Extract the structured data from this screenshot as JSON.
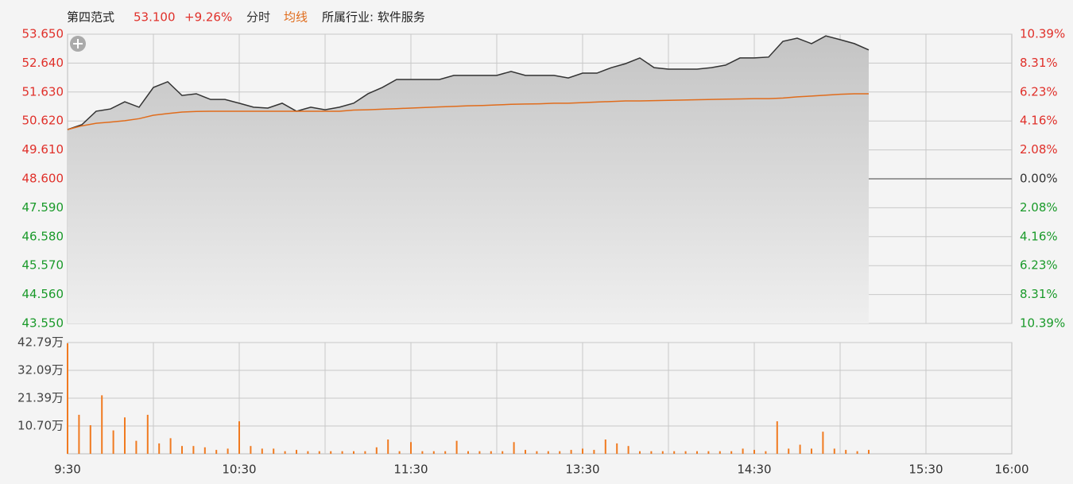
{
  "chart_data": [
    {
      "type": "line",
      "title": "第四范式",
      "price": "53.100",
      "change": "+9.26%",
      "subtitle": "所属行业: 软件服务",
      "x": [
        0,
        5,
        10,
        15,
        20,
        25,
        30,
        35,
        40,
        45,
        50,
        55,
        60,
        65,
        70,
        75,
        80,
        85,
        90,
        95,
        100,
        105,
        110,
        115,
        120,
        125,
        130,
        135,
        140,
        145,
        150,
        155,
        160,
        165,
        170,
        175,
        180,
        185,
        190,
        195,
        200,
        205,
        210,
        215,
        220,
        225,
        230,
        235,
        240,
        245,
        250,
        255,
        260,
        265,
        270,
        275,
        280
      ],
      "series": [
        {
          "name": "分时",
          "color": "#333333",
          "values": [
            50.32,
            50.49,
            50.96,
            51.04,
            51.29,
            51.1,
            51.79,
            51.99,
            51.51,
            51.57,
            51.37,
            51.37,
            51.24,
            51.1,
            51.07,
            51.24,
            50.96,
            51.1,
            51.01,
            51.1,
            51.24,
            51.57,
            51.79,
            52.07,
            52.07,
            52.07,
            52.07,
            52.21,
            52.21,
            52.21,
            52.21,
            52.35,
            52.21,
            52.21,
            52.21,
            52.12,
            52.29,
            52.29,
            52.48,
            52.62,
            52.82,
            52.48,
            52.43,
            52.43,
            52.43,
            52.48,
            52.57,
            52.82,
            52.82,
            52.85,
            53.4,
            53.51,
            53.32,
            53.59,
            53.46,
            53.32,
            53.1
          ]
        },
        {
          "name": "均线",
          "color": "#e06c1c",
          "values": [
            50.32,
            50.45,
            50.54,
            50.58,
            50.63,
            50.7,
            50.82,
            50.88,
            50.93,
            50.95,
            50.96,
            50.96,
            50.96,
            50.96,
            50.96,
            50.96,
            50.96,
            50.96,
            50.96,
            50.96,
            51.0,
            51.01,
            51.03,
            51.05,
            51.07,
            51.09,
            51.11,
            51.13,
            51.15,
            51.16,
            51.18,
            51.2,
            51.21,
            51.22,
            51.24,
            51.24,
            51.26,
            51.28,
            51.3,
            51.32,
            51.32,
            51.33,
            51.34,
            51.35,
            51.36,
            51.37,
            51.38,
            51.39,
            51.4,
            51.4,
            51.42,
            51.46,
            51.49,
            51.52,
            51.55,
            51.57,
            51.57
          ]
        }
      ],
      "xlim": [
        0,
        330
      ],
      "xticks": [
        30,
        60,
        90,
        120,
        150,
        180,
        210,
        240,
        270,
        300
      ],
      "ylim": [
        43.55,
        53.65
      ],
      "yticks": [
        {
          "value": 53.65,
          "label": "53.650"
        },
        {
          "value": 52.64,
          "label": "52.640"
        },
        {
          "value": 51.63,
          "label": "51.630"
        },
        {
          "value": 50.62,
          "label": "50.620"
        },
        {
          "value": 49.61,
          "label": "49.610"
        },
        {
          "value": 48.6,
          "label": "48.600"
        },
        {
          "value": 47.59,
          "label": "47.590"
        },
        {
          "value": 46.58,
          "label": "46.580"
        },
        {
          "value": 45.57,
          "label": "45.570"
        },
        {
          "value": 44.56,
          "label": "44.560"
        },
        {
          "value": 43.55,
          "label": "43.550"
        }
      ],
      "y2lim": [
        -10.39,
        10.39
      ],
      "y2ticks": [
        {
          "value": 10.39,
          "label": "10.39%"
        },
        {
          "value": 8.31,
          "label": "8.31%"
        },
        {
          "value": 6.23,
          "label": "6.23%"
        },
        {
          "value": 4.16,
          "label": "4.16%"
        },
        {
          "value": 2.08,
          "label": "2.08%"
        },
        {
          "value": 0,
          "label": "0.00%"
        },
        {
          "value": -2.08,
          "label": "2.08%"
        },
        {
          "value": -4.16,
          "label": "4.16%"
        },
        {
          "value": -6.23,
          "label": "6.23%"
        },
        {
          "value": -8.31,
          "label": "8.31%"
        },
        {
          "value": -10.39,
          "label": "10.39%"
        }
      ]
    },
    {
      "type": "bar",
      "color": "#f07a20",
      "x": [
        0,
        4,
        8,
        12,
        16,
        20,
        24,
        28,
        32,
        36,
        40,
        44,
        48,
        52,
        56,
        60,
        64,
        68,
        72,
        76,
        80,
        84,
        88,
        92,
        96,
        100,
        104,
        108,
        112,
        116,
        120,
        124,
        128,
        132,
        136,
        140,
        144,
        148,
        152,
        156,
        160,
        164,
        168,
        172,
        176,
        180,
        184,
        188,
        192,
        196,
        200,
        204,
        208,
        212,
        216,
        220,
        224,
        228,
        232,
        236,
        240,
        244,
        248,
        252,
        256,
        260,
        264,
        268,
        272,
        276,
        280
      ],
      "values": [
        42.5,
        15,
        11,
        22.5,
        9,
        14,
        5,
        15,
        4,
        6,
        3,
        3,
        2.5,
        1.5,
        2,
        12.5,
        3,
        2,
        2,
        1,
        1.5,
        1,
        1,
        1,
        1,
        1,
        1,
        2.5,
        5.5,
        1,
        4.5,
        1,
        1,
        1,
        5,
        1,
        1,
        1,
        1,
        4.5,
        1.5,
        1,
        1,
        1,
        1.5,
        2,
        1.5,
        5.5,
        4,
        3,
        1,
        1,
        1,
        1,
        1,
        1,
        1,
        1,
        1,
        2,
        1.5,
        1,
        12.5,
        2,
        3.5,
        2,
        8.5,
        2,
        1.5,
        1,
        1.5
      ],
      "xlim": [
        0,
        330
      ],
      "xticks": [
        {
          "value": 0,
          "label": "9:30"
        },
        {
          "value": 60,
          "label": "10:30"
        },
        {
          "value": 120,
          "label": "11:30"
        },
        {
          "value": 180,
          "label": "13:30"
        },
        {
          "value": 240,
          "label": "14:30"
        },
        {
          "value": 300,
          "label": "15:30"
        },
        {
          "value": 330,
          "label": "16:00"
        }
      ],
      "ylim": [
        0,
        42.79
      ],
      "yticks": [
        {
          "value": 42.79,
          "label": "42.79万"
        },
        {
          "value": 32.09,
          "label": "32.09万"
        },
        {
          "value": 21.39,
          "label": "21.39万"
        },
        {
          "value": 10.7,
          "label": "10.70万"
        }
      ]
    }
  ]
}
